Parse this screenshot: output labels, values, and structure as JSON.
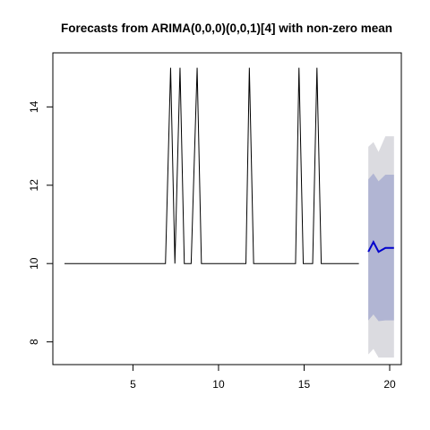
{
  "chart_data": {
    "type": "line",
    "title": "Forecasts from ARIMA(0,0,0)(0,0,1)[4] with non-zero mean",
    "xlabel": "",
    "ylabel": "",
    "xlim": [
      0.32,
      20.68
    ],
    "ylim": [
      7.42,
      15.38
    ],
    "x_ticks": [
      5,
      10,
      15,
      20
    ],
    "y_ticks": [
      8,
      10,
      12,
      14
    ],
    "grid": false,
    "legend": "none",
    "series": [
      {
        "role": "observed",
        "color": "#000000",
        "points": [
          [
            1,
            10
          ],
          [
            2,
            10
          ],
          [
            3,
            10
          ],
          [
            4,
            10
          ],
          [
            5,
            10
          ],
          [
            6,
            10
          ],
          [
            6.9,
            10
          ],
          [
            7.2,
            15
          ],
          [
            7.45,
            10
          ],
          [
            7.75,
            15
          ],
          [
            8.0,
            10
          ],
          [
            8.4,
            10
          ],
          [
            8.75,
            15
          ],
          [
            9.0,
            10
          ],
          [
            10,
            10
          ],
          [
            11,
            10
          ],
          [
            11.6,
            10
          ],
          [
            11.8,
            15
          ],
          [
            12.05,
            10
          ],
          [
            13,
            10
          ],
          [
            14.5,
            10
          ],
          [
            14.7,
            15
          ],
          [
            14.95,
            10
          ],
          [
            15.5,
            10
          ],
          [
            15.75,
            15
          ],
          [
            16.0,
            10
          ],
          [
            17,
            10
          ],
          [
            18.2,
            10
          ]
        ]
      },
      {
        "role": "forecast_mean",
        "color": "#0000cc",
        "points": [
          [
            18.75,
            10.3
          ],
          [
            19.05,
            10.55
          ],
          [
            19.35,
            10.3
          ],
          [
            19.75,
            10.4
          ],
          [
            20.25,
            10.4
          ]
        ]
      }
    ],
    "intervals": [
      {
        "level": 95,
        "color": "#dbdbe0",
        "x": [
          18.75,
          19.05,
          19.35,
          19.75,
          20.25
        ],
        "upper": [
          12.98,
          13.1,
          12.85,
          13.25,
          13.25
        ],
        "lower": [
          7.68,
          7.82,
          7.6,
          7.6,
          7.6
        ]
      },
      {
        "level": 80,
        "color": "#b1b5d3",
        "x": [
          18.75,
          19.05,
          19.35,
          19.75,
          20.25
        ],
        "upper": [
          12.15,
          12.3,
          12.1,
          12.27,
          12.27
        ],
        "lower": [
          8.55,
          8.7,
          8.53,
          8.55,
          8.55
        ]
      }
    ]
  }
}
